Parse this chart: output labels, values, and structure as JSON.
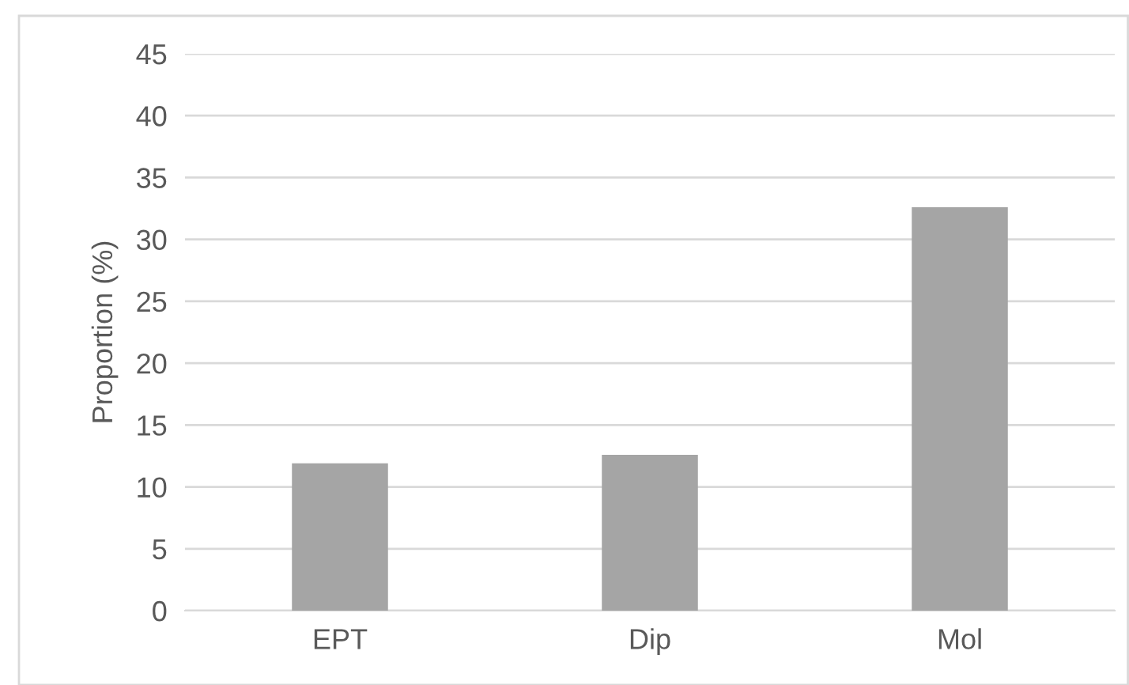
{
  "chart_data": {
    "type": "bar",
    "ylabel": "Proportion (%)",
    "categories": [
      "EPT",
      "Dip",
      "Mol"
    ],
    "values": [
      11.9,
      12.6,
      32.6
    ],
    "color": "#a5a5a5",
    "ylim": [
      0,
      45
    ],
    "yticks": [
      0,
      5,
      10,
      15,
      20,
      25,
      30,
      35,
      40,
      45
    ],
    "grid": "y"
  }
}
